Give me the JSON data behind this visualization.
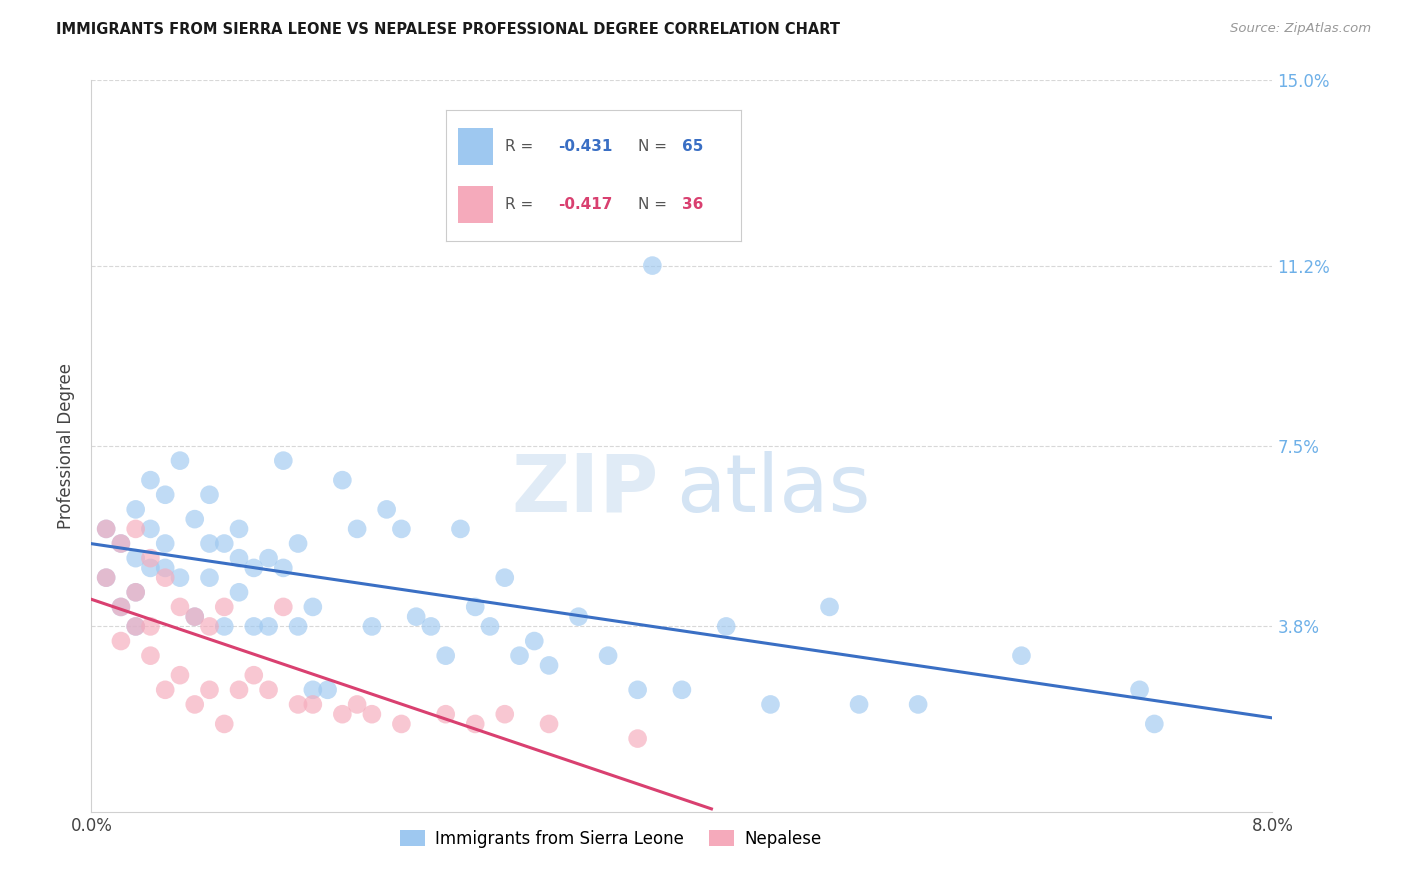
{
  "title": "IMMIGRANTS FROM SIERRA LEONE VS NEPALESE PROFESSIONAL DEGREE CORRELATION CHART",
  "source": "Source: ZipAtlas.com",
  "ylabel": "Professional Degree",
  "legend_label1": "Immigrants from Sierra Leone",
  "legend_label2": "Nepalese",
  "R1": -0.431,
  "N1": 65,
  "R2": -0.417,
  "N2": 36,
  "xlim": [
    0,
    0.08
  ],
  "ylim": [
    0,
    0.15
  ],
  "yticks": [
    0.0,
    0.038,
    0.075,
    0.112,
    0.15
  ],
  "yticklabels": [
    "",
    "3.8%",
    "7.5%",
    "11.2%",
    "15.0%"
  ],
  "xticks": [
    0.0,
    0.02,
    0.04,
    0.06,
    0.08
  ],
  "xticklabels": [
    "0.0%",
    "",
    "",
    "",
    "8.0%"
  ],
  "color_blue": "#9EC8F0",
  "color_blue_line": "#3A6FC4",
  "color_pink": "#F5AABB",
  "color_pink_line": "#D94070",
  "color_ytick": "#6EB0E8",
  "watermark_zip": "ZIP",
  "watermark_atlas": "atlas",
  "blue_x": [
    0.001,
    0.001,
    0.002,
    0.002,
    0.003,
    0.003,
    0.003,
    0.003,
    0.004,
    0.004,
    0.004,
    0.005,
    0.005,
    0.005,
    0.006,
    0.006,
    0.007,
    0.007,
    0.008,
    0.008,
    0.008,
    0.009,
    0.009,
    0.01,
    0.01,
    0.01,
    0.011,
    0.011,
    0.012,
    0.012,
    0.013,
    0.013,
    0.014,
    0.014,
    0.015,
    0.015,
    0.016,
    0.017,
    0.018,
    0.019,
    0.02,
    0.021,
    0.022,
    0.023,
    0.024,
    0.025,
    0.026,
    0.027,
    0.028,
    0.029,
    0.03,
    0.031,
    0.033,
    0.035,
    0.037,
    0.038,
    0.04,
    0.043,
    0.046,
    0.05,
    0.052,
    0.056,
    0.063,
    0.071,
    0.072
  ],
  "blue_y": [
    0.058,
    0.048,
    0.055,
    0.042,
    0.062,
    0.052,
    0.045,
    0.038,
    0.068,
    0.058,
    0.05,
    0.065,
    0.055,
    0.05,
    0.072,
    0.048,
    0.06,
    0.04,
    0.065,
    0.055,
    0.048,
    0.055,
    0.038,
    0.058,
    0.052,
    0.045,
    0.05,
    0.038,
    0.052,
    0.038,
    0.072,
    0.05,
    0.055,
    0.038,
    0.042,
    0.025,
    0.025,
    0.068,
    0.058,
    0.038,
    0.062,
    0.058,
    0.04,
    0.038,
    0.032,
    0.058,
    0.042,
    0.038,
    0.048,
    0.032,
    0.035,
    0.03,
    0.04,
    0.032,
    0.025,
    0.112,
    0.025,
    0.038,
    0.022,
    0.042,
    0.022,
    0.022,
    0.032,
    0.025,
    0.018
  ],
  "pink_x": [
    0.001,
    0.001,
    0.002,
    0.002,
    0.002,
    0.003,
    0.003,
    0.003,
    0.004,
    0.004,
    0.004,
    0.005,
    0.005,
    0.006,
    0.006,
    0.007,
    0.007,
    0.008,
    0.008,
    0.009,
    0.009,
    0.01,
    0.011,
    0.012,
    0.013,
    0.014,
    0.015,
    0.017,
    0.018,
    0.019,
    0.021,
    0.024,
    0.026,
    0.028,
    0.031,
    0.037
  ],
  "pink_y": [
    0.058,
    0.048,
    0.055,
    0.042,
    0.035,
    0.058,
    0.045,
    0.038,
    0.052,
    0.038,
    0.032,
    0.048,
    0.025,
    0.042,
    0.028,
    0.04,
    0.022,
    0.038,
    0.025,
    0.042,
    0.018,
    0.025,
    0.028,
    0.025,
    0.042,
    0.022,
    0.022,
    0.02,
    0.022,
    0.02,
    0.018,
    0.02,
    0.018,
    0.02,
    0.018,
    0.015
  ]
}
